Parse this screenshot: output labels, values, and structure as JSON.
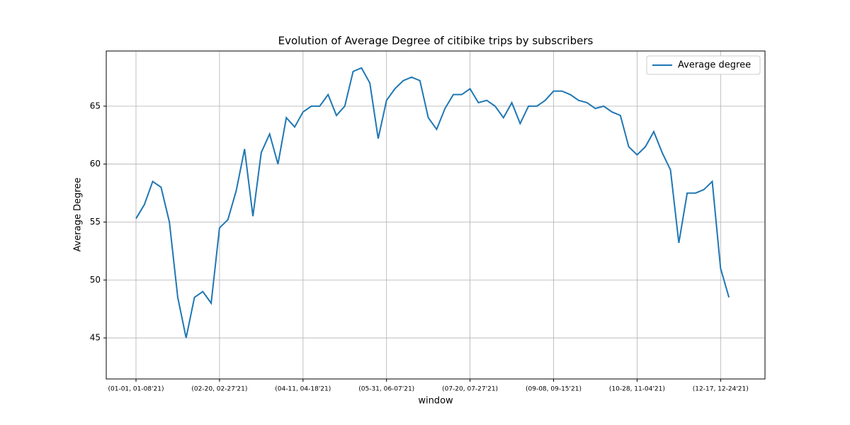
{
  "chart_data": {
    "type": "line",
    "title": "Evolution of Average Degree of citibike trips by subscribers",
    "xlabel": "window",
    "ylabel": "Average Degree",
    "categories": [
      "(01-01, 01-08'21)",
      null,
      null,
      null,
      null,
      null,
      null,
      null,
      null,
      null,
      "(02-20, 02-27'21)",
      null,
      null,
      null,
      null,
      null,
      null,
      null,
      null,
      null,
      "(04-11, 04-18'21)",
      null,
      null,
      null,
      null,
      null,
      null,
      null,
      null,
      null,
      "(05-31, 06-07'21)",
      null,
      null,
      null,
      null,
      null,
      null,
      null,
      null,
      null,
      "(07-20, 07-27'21)",
      null,
      null,
      null,
      null,
      null,
      null,
      null,
      null,
      null,
      "(09-08, 09-15'21)",
      null,
      null,
      null,
      null,
      null,
      null,
      null,
      null,
      null,
      "(10-28, 11-04'21)",
      null,
      null,
      null,
      null,
      null,
      null,
      null,
      null,
      null,
      "(12-17, 12-24'21)",
      null
    ],
    "series": [
      {
        "name": "Average degree",
        "color": "#1f77b4",
        "values": [
          55.3,
          56.5,
          58.5,
          58.0,
          55.0,
          48.5,
          45.0,
          48.5,
          49.0,
          48.0,
          54.5,
          55.2,
          57.7,
          61.3,
          55.5,
          61.0,
          62.6,
          60.0,
          64.0,
          63.2,
          64.5,
          65.0,
          65.0,
          66.0,
          64.2,
          65.0,
          68.0,
          68.3,
          67.0,
          62.2,
          65.5,
          66.5,
          67.2,
          67.5,
          67.2,
          64.0,
          63.0,
          64.8,
          66.0,
          66.0,
          66.5,
          65.3,
          65.5,
          65.0,
          64.0,
          65.3,
          63.5,
          65.0,
          65.0,
          65.5,
          66.3,
          66.3,
          66.0,
          65.5,
          65.3,
          64.8,
          65.0,
          64.5,
          64.2,
          61.5,
          60.8,
          61.5,
          62.8,
          61.0,
          59.5,
          53.2,
          57.5,
          57.5,
          57.8,
          58.5,
          51.0,
          48.5
        ]
      }
    ],
    "ylim": [
      41.46,
      69.76
    ],
    "yticks": [
      45,
      50,
      55,
      60,
      65
    ],
    "grid": true,
    "legend": "upper right"
  }
}
